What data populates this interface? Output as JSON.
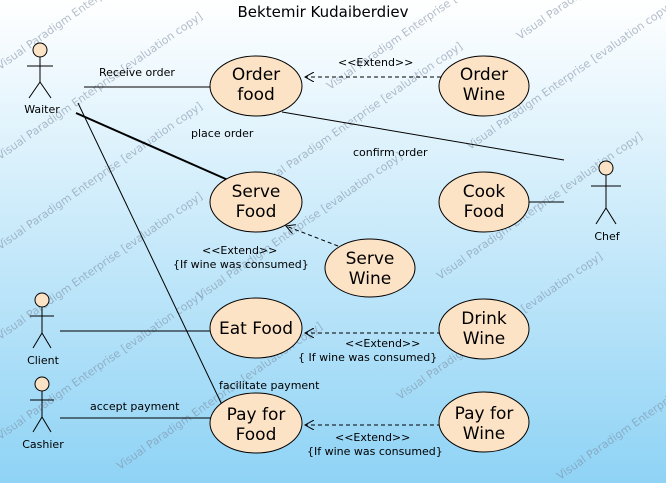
{
  "title": "Bektemir Kudaiberdiev",
  "watermark": "Visual Paradigm Enterprise [evaluation copy]",
  "colors": {
    "bg_top": "#ffffff",
    "bg_bottom": "#8fd3f5",
    "usecase_fill": "#fde3c6",
    "usecase_stroke": "#000000"
  },
  "actors": {
    "waiter": "Waiter",
    "client": "Client",
    "cashier": "Cashier",
    "chef": "Chef"
  },
  "usecases": {
    "order_food": [
      "Order",
      "food"
    ],
    "order_wine": [
      "Order",
      "Wine"
    ],
    "serve_food": [
      "Serve",
      "Food"
    ],
    "cook_food": [
      "Cook",
      "Food"
    ],
    "serve_wine": [
      "Serve",
      "Wine"
    ],
    "eat_food": [
      "Eat Food"
    ],
    "drink_wine": [
      "Drink",
      "Wine"
    ],
    "pay_food": [
      "Pay for",
      "Food"
    ],
    "pay_wine": [
      "Pay for",
      "Wine"
    ]
  },
  "labels": {
    "receive_order": "Receive order",
    "place_order": "place order",
    "confirm_order": "confirm order",
    "extend": "<<Extend>>",
    "extend_serve": "<<Extend>>",
    "cond_serve": "{If wine was consumed}",
    "cond_drink": "{ If wine was consumed}",
    "cond_pay": "{If wine was consumed}",
    "facilitate_payment": "facilitate payment",
    "accept_payment": "accept payment"
  }
}
